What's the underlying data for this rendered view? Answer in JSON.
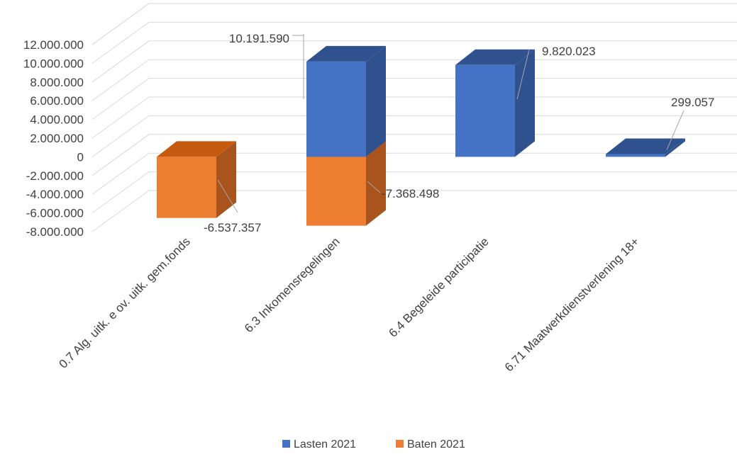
{
  "chart_data": {
    "type": "bar",
    "stacked": true,
    "three_d": true,
    "categories": [
      "0.7 Alg. uitk. e ov. uitk. gem.fonds",
      "6.3 Inkomensregelingen",
      "6.4 Begeleide participatie",
      "6.71 Maatwerkdienstverlening 18+"
    ],
    "series": [
      {
        "name": "Lasten 2021",
        "color": "#4472C4",
        "values": [
          null,
          10191590,
          9820023,
          299057
        ]
      },
      {
        "name": "Baten 2021",
        "color": "#ED7D31",
        "values": [
          -6537357,
          -7368498,
          null,
          null
        ]
      }
    ],
    "data_labels": [
      "10.191.590",
      "9.820.023",
      "299.057",
      "-6.537.357",
      "-7.368.498"
    ],
    "y_ticks": [
      "12.000.000",
      "10.000.000",
      "8.000.000",
      "6.000.000",
      "4.000.000",
      "2.000.000",
      "0",
      "-2.000.000",
      "-4.000.000",
      "-6.000.000",
      "-8.000.000"
    ],
    "ylim": [
      -8000000,
      12000000
    ],
    "grid": true,
    "legend_position": "bottom"
  }
}
